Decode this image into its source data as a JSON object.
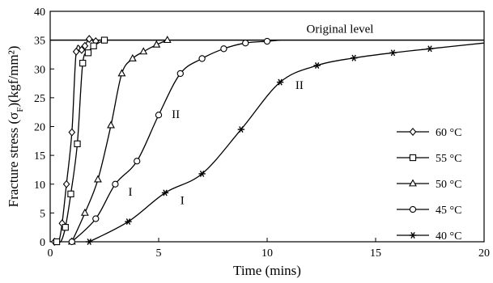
{
  "chart_data": {
    "type": "line",
    "xlabel": "Time (mins)",
    "ylabel_main": "Fracture stress (σ",
    "ylabel_sub": "F",
    "ylabel_tail": ")(kgf/mm²)",
    "xlim": [
      0,
      20
    ],
    "ylim": [
      0,
      40
    ],
    "x_ticks": [
      0,
      5,
      10,
      15,
      20
    ],
    "y_ticks": [
      0,
      5,
      10,
      15,
      20,
      25,
      30,
      35,
      40
    ],
    "grid": false,
    "legend_position": "right",
    "reference_line": {
      "y": 35,
      "label": "Original level"
    },
    "annotations": [
      {
        "text": "I",
        "x": 3.6,
        "y": 8
      },
      {
        "text": "I",
        "x": 6.0,
        "y": 6.5
      },
      {
        "text": "II",
        "x": 5.6,
        "y": 21.5
      },
      {
        "text": "II",
        "x": 11.3,
        "y": 26.5
      }
    ],
    "series": [
      {
        "name": "60 °C",
        "marker": "diamond",
        "points": [
          [
            0.2,
            0
          ],
          [
            0.4,
            0.1
          ],
          [
            0.55,
            3.2
          ],
          [
            0.75,
            10
          ],
          [
            1.0,
            19
          ],
          [
            1.2,
            33
          ],
          [
            1.45,
            33.3
          ],
          [
            1.6,
            34
          ],
          [
            1.8,
            35.2
          ],
          [
            2.1,
            34.8
          ]
        ],
        "markers_x": [
          0.2,
          0.55,
          0.75,
          1.0,
          1.2,
          1.45,
          1.6,
          1.8,
          2.1
        ]
      },
      {
        "name": "55 °C",
        "marker": "square",
        "points": [
          [
            0.3,
            0
          ],
          [
            0.5,
            0.1
          ],
          [
            0.7,
            2.5
          ],
          [
            0.95,
            8.3
          ],
          [
            1.25,
            17
          ],
          [
            1.5,
            31
          ],
          [
            1.75,
            32.8
          ],
          [
            2.0,
            34
          ],
          [
            2.5,
            35
          ]
        ],
        "markers_x": [
          0.3,
          0.7,
          0.95,
          1.25,
          1.5,
          1.75,
          2.0,
          2.5
        ]
      },
      {
        "name": "50 °C",
        "marker": "triangle",
        "points": [
          [
            1.0,
            0
          ],
          [
            1.6,
            5
          ],
          [
            2.2,
            10.8
          ],
          [
            2.8,
            20.2
          ],
          [
            3.3,
            29.2
          ],
          [
            3.8,
            31.8
          ],
          [
            4.3,
            33
          ],
          [
            4.9,
            34.2
          ],
          [
            5.4,
            35
          ]
        ],
        "markers_x": [
          1.0,
          1.6,
          2.2,
          2.8,
          3.3,
          3.8,
          4.3,
          4.9,
          5.4
        ]
      },
      {
        "name": "45 °C",
        "marker": "circle",
        "points": [
          [
            1.0,
            0
          ],
          [
            2.1,
            4
          ],
          [
            3.0,
            10
          ],
          [
            4.0,
            14
          ],
          [
            5.0,
            22
          ],
          [
            6.0,
            29.2
          ],
          [
            7.0,
            31.8
          ],
          [
            8.0,
            33.5
          ],
          [
            9.0,
            34.5
          ],
          [
            10.0,
            34.8
          ],
          [
            10.6,
            35
          ]
        ],
        "markers_x": [
          1.0,
          2.1,
          3.0,
          4.0,
          5.0,
          6.0,
          7.0,
          8.0,
          9.0,
          10.0
        ]
      },
      {
        "name": "40 °C",
        "marker": "star",
        "points": [
          [
            1.8,
            0
          ],
          [
            3.6,
            3.5
          ],
          [
            5.3,
            8.5
          ],
          [
            7.0,
            11.8
          ],
          [
            8.8,
            19.5
          ],
          [
            10.6,
            27.7
          ],
          [
            12.3,
            30.6
          ],
          [
            14.0,
            31.9
          ],
          [
            15.8,
            32.8
          ],
          [
            17.5,
            33.5
          ],
          [
            20.0,
            34.5
          ]
        ],
        "markers_x": [
          1.8,
          3.6,
          5.3,
          7.0,
          8.8,
          10.6,
          12.3,
          14.0,
          15.8,
          17.5
        ]
      }
    ]
  }
}
